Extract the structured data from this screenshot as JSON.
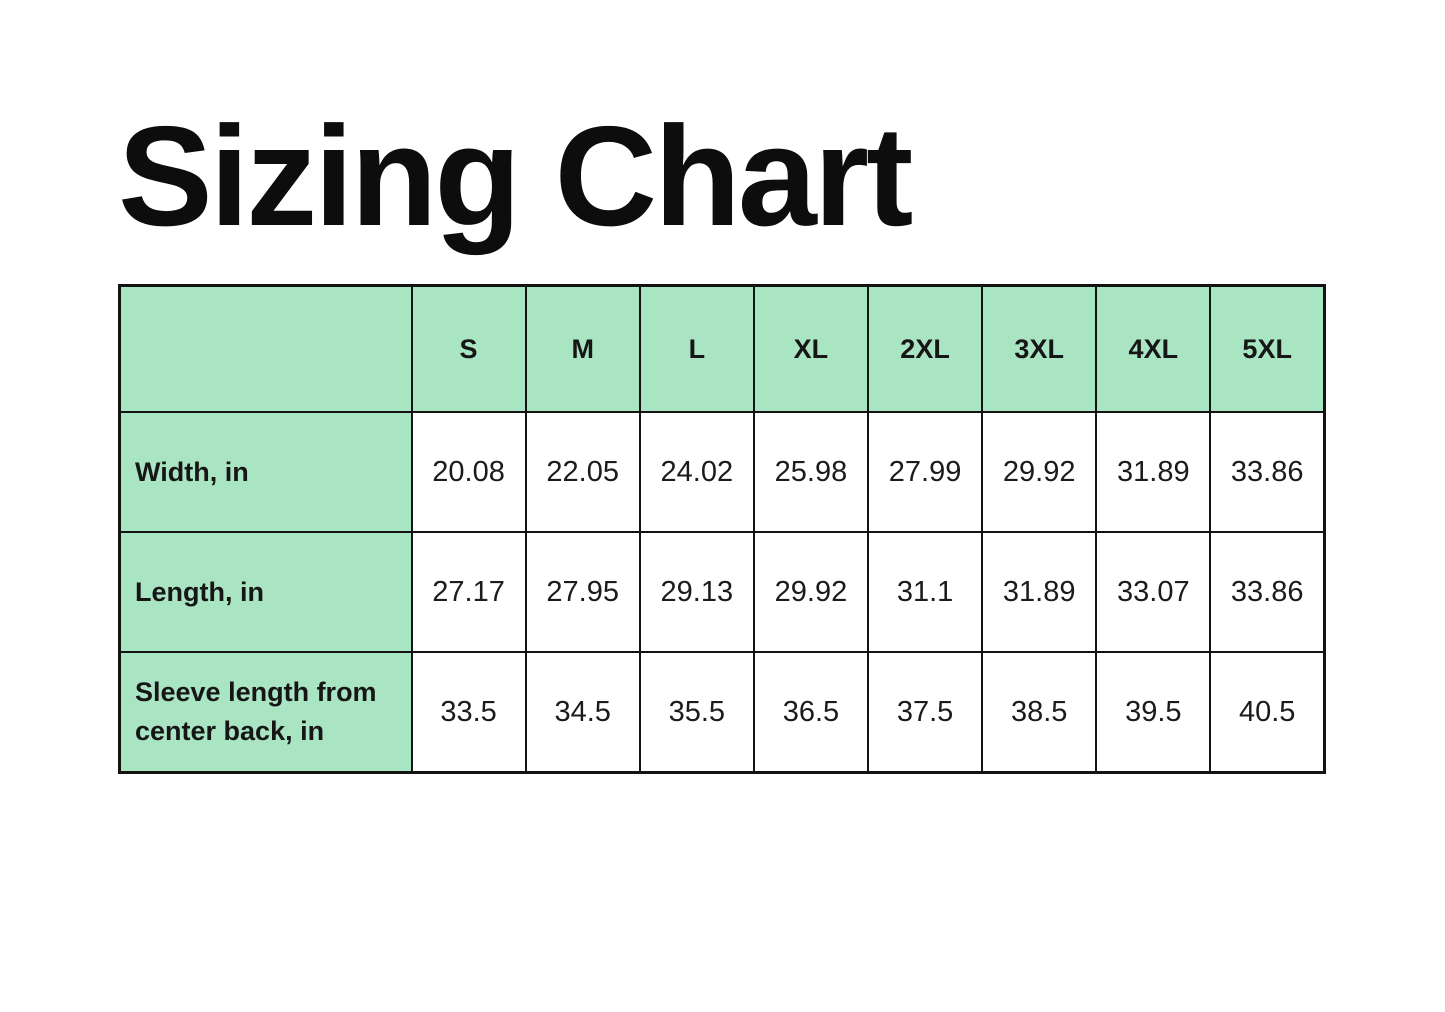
{
  "title": "Sizing Chart",
  "colors": {
    "page_background": "#ffffff",
    "header_fill": "#a9e4c3",
    "row_label_fill": "#a9e4c3",
    "value_cell_fill": "#ffffff",
    "border": "#131313",
    "text": "#131313"
  },
  "chart_data": {
    "type": "table",
    "title": "Sizing Chart",
    "columns": [
      "S",
      "M",
      "L",
      "XL",
      "2XL",
      "3XL",
      "4XL",
      "5XL"
    ],
    "rows": [
      {
        "label": "Width, in",
        "values": [
          "20.08",
          "22.05",
          "24.02",
          "25.98",
          "27.99",
          "29.92",
          "31.89",
          "33.86"
        ]
      },
      {
        "label": "Length, in",
        "values": [
          "27.17",
          "27.95",
          "29.13",
          "29.92",
          "31.1",
          "31.89",
          "33.07",
          "33.86"
        ]
      },
      {
        "label": "Sleeve length from center back, in",
        "values": [
          "33.5",
          "34.5",
          "35.5",
          "36.5",
          "37.5",
          "38.5",
          "39.5",
          "40.5"
        ]
      }
    ]
  }
}
